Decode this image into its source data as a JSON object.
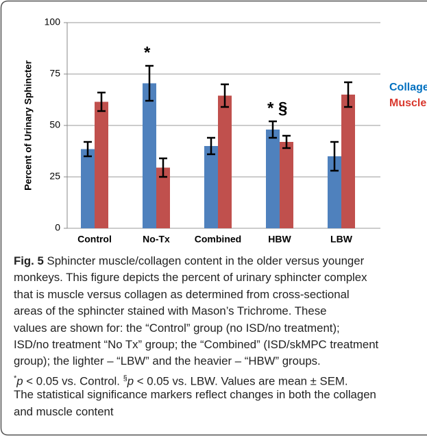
{
  "chart_data": {
    "type": "bar",
    "ylabel": "Percent of Urinary Sphincter",
    "categories": [
      "Control",
      "No-Tx",
      "Combined",
      "HBW",
      "LBW"
    ],
    "series": [
      {
        "name": "Collagen",
        "color": "#4f81bd",
        "label_color": "#0070c0",
        "values": [
          38.5,
          70.5,
          40,
          48,
          35
        ],
        "errors": [
          3.5,
          8.5,
          4,
          4,
          7
        ]
      },
      {
        "name": "Muscle",
        "color": "#c0504d",
        "label_color": "#d9382e",
        "values": [
          61.5,
          29.5,
          64.5,
          42,
          65
        ],
        "errors": [
          4.5,
          4.5,
          5.5,
          3,
          6
        ]
      }
    ],
    "ylim": [
      0,
      100
    ],
    "yticks": [
      0,
      25,
      50,
      75,
      100
    ],
    "grid": true,
    "annotations": [
      {
        "text": "*",
        "category": "No-Tx"
      },
      {
        "text": "* §",
        "category": "HBW"
      }
    ]
  },
  "caption": {
    "label": "Fig. 5",
    "first": "Sphincter muscle/collagen content in the older versus younger",
    "lines": [
      "monkeys. This figure depicts the percent of urinary sphincter complex",
      "that is muscle versus collagen as determined from cross-sectional",
      "areas of the sphincter stained with Mason’s Trichrome. These",
      "values are shown for: the “Control” group (no ISD/no treatment);",
      "ISD/no treatment “No Tx” group; the “Combined” (ISD/skMPC treatment",
      "group); the lighter – “LBW” and the heavier – “HBW” groups."
    ],
    "footnote": [
      "*",
      "p",
      " < 0.05 vs. Control. ",
      "§",
      "p",
      " < 0.05 vs. LBW. Values are mean ± SEM."
    ],
    "footnote_styles": [
      "sup",
      "i",
      "",
      "sup",
      "i",
      ""
    ],
    "after": [
      "The statistical significance markers reflect changes in both the collagen",
      "and muscle content"
    ]
  }
}
